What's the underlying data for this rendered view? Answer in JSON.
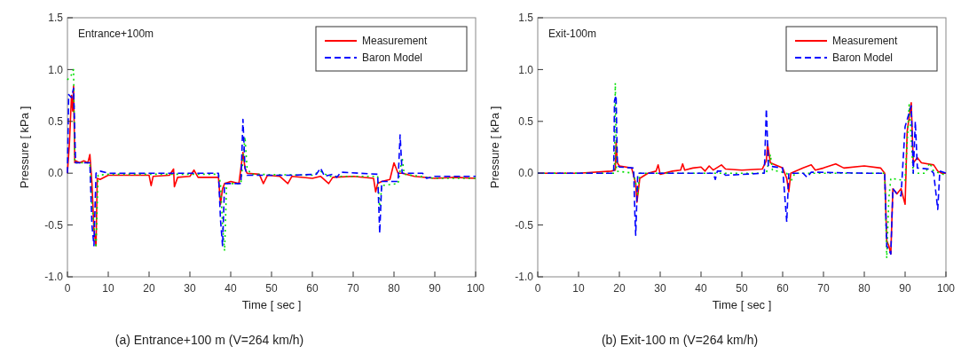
{
  "chart_data": [
    {
      "type": "line",
      "title": "(a)  Entrance+100  m  (V=264  km/h)",
      "xlabel": "Time [ sec ]",
      "ylabel": "Pressure [ kPa ]",
      "annotations": [
        "Entrance+100m"
      ],
      "xlim": [
        0,
        100
      ],
      "ylim": [
        -1,
        1.5
      ],
      "xticks": [
        0,
        10,
        20,
        30,
        40,
        50,
        60,
        70,
        80,
        90,
        100
      ],
      "yticks": [
        {
          "value": -1,
          "label": "-1.0"
        },
        {
          "value": -0.5,
          "label": "-0.5"
        },
        {
          "value": 0,
          "label": "0.0"
        },
        {
          "value": 0.5,
          "label": "0.5"
        },
        {
          "value": 1,
          "label": "1.0"
        },
        {
          "value": 1.5,
          "label": "1.5"
        }
      ],
      "legend": "top right",
      "grid": false,
      "series": [
        {
          "name": "Measurement",
          "color": "#ff0000",
          "line_style": "solid",
          "x": [
            0,
            0.5,
            1,
            1.3,
            1.5,
            1.8,
            2,
            3,
            4,
            5,
            5.5,
            6,
            6.5,
            7,
            7.3,
            8,
            10,
            20,
            20.5,
            21,
            25,
            26,
            26.2,
            27,
            30,
            31,
            32,
            37,
            37.5,
            38,
            38.5,
            40,
            42,
            42.5,
            43,
            43.5,
            44,
            47,
            48,
            49,
            52,
            54,
            55,
            60,
            62,
            64,
            65,
            70,
            75,
            75.5,
            76,
            77,
            79,
            80,
            81,
            82,
            85,
            90,
            95,
            100
          ],
          "values": [
            0,
            0.3,
            0.75,
            0.6,
            0.84,
            0.1,
            0.12,
            0.1,
            0.12,
            0.1,
            0.18,
            -0.1,
            -0.55,
            -0.7,
            -0.05,
            -0.06,
            -0.02,
            -0.02,
            -0.12,
            -0.03,
            -0.02,
            0.04,
            -0.13,
            -0.04,
            -0.03,
            0.03,
            -0.04,
            -0.04,
            -0.3,
            -0.15,
            -0.1,
            -0.08,
            -0.1,
            0.05,
            0.2,
            0.05,
            0,
            -0.01,
            -0.1,
            -0.02,
            -0.03,
            -0.1,
            -0.03,
            -0.05,
            -0.03,
            -0.1,
            -0.04,
            -0.03,
            -0.05,
            -0.18,
            -0.1,
            -0.08,
            -0.06,
            0.1,
            0,
            0,
            -0.03,
            -0.05,
            -0.04,
            -0.05
          ]
        },
        {
          "color": "#00e000",
          "line_style": "dotted",
          "x": [
            0,
            1,
            1.5,
            1.8,
            5.5,
            6,
            7,
            7.5,
            10,
            37,
            37.5,
            38,
            38.5,
            39,
            42.5,
            43.5,
            44,
            45,
            60,
            62,
            64,
            76,
            76.5,
            77,
            81,
            82,
            82.5,
            90,
            100
          ],
          "values": [
            0.9,
            0.95,
            1,
            0.1,
            0.1,
            -0.3,
            -0.72,
            -0.02,
            -0.01,
            -0.01,
            -0.1,
            -0.5,
            -0.75,
            -0.1,
            -0.1,
            0.35,
            0.05,
            -0.01,
            -0.02,
            0.02,
            -0.03,
            -0.03,
            -0.35,
            -0.12,
            -0.1,
            0.15,
            -0.01,
            -0.05,
            -0.05
          ]
        },
        {
          "name": "Baron Model",
          "color": "#0000ff",
          "line_style": "dashed",
          "x": [
            0,
            0.3,
            1,
            1.5,
            2,
            5.5,
            6,
            6.5,
            7,
            8,
            10,
            37,
            37.5,
            38,
            38.5,
            42.5,
            43,
            43.5,
            44,
            55,
            61,
            62,
            63,
            65,
            66,
            67,
            76,
            76.5,
            77,
            81,
            81.5,
            82,
            87,
            88,
            90,
            100
          ],
          "values": [
            0,
            0.76,
            0.73,
            0.82,
            0.1,
            0.1,
            -0.5,
            -0.7,
            0,
            0.02,
            0,
            0,
            -0.45,
            -0.7,
            -0.1,
            -0.1,
            0.52,
            0.05,
            -0.02,
            -0.02,
            -0.01,
            0.05,
            -0.03,
            -0.01,
            -0.04,
            0.01,
            -0.01,
            -0.58,
            -0.08,
            -0.08,
            0.37,
            0,
            0,
            -0.05,
            -0.03,
            -0.03
          ]
        }
      ]
    },
    {
      "type": "line",
      "title": "(b)  Exit-100  m  (V=264  km/h)",
      "xlabel": "Time [ sec ]",
      "ylabel": "Pressure [ kPa ]",
      "annotations": [
        "Exit-100m"
      ],
      "xlim": [
        0,
        100
      ],
      "ylim": [
        -1,
        1.5
      ],
      "xticks": [
        0,
        10,
        20,
        30,
        40,
        50,
        60,
        70,
        80,
        90,
        100
      ],
      "yticks": [
        {
          "value": -1,
          "label": "-1.0"
        },
        {
          "value": -0.5,
          "label": "-0.5"
        },
        {
          "value": 0,
          "label": "0.0"
        },
        {
          "value": 0.5,
          "label": "0.5"
        },
        {
          "value": 1,
          "label": "1.0"
        },
        {
          "value": 1.5,
          "label": "1.5"
        }
      ],
      "legend": "top right",
      "grid": false,
      "series": [
        {
          "name": "Measurement",
          "color": "#ff0000",
          "line_style": "solid",
          "x": [
            0,
            10,
            18,
            19,
            19.2,
            19.5,
            20,
            23,
            24,
            24.3,
            25,
            27,
            29,
            29.5,
            30,
            33,
            35,
            35.5,
            36,
            38,
            40,
            41,
            42,
            43,
            45,
            46,
            50,
            55,
            56,
            56.3,
            57,
            60,
            61,
            61.5,
            62,
            65,
            67,
            68,
            70,
            73,
            75,
            80,
            84,
            85,
            85.5,
            86,
            86.5,
            87,
            88,
            89,
            90,
            90.5,
            91.5,
            92,
            93,
            94,
            97,
            98,
            99,
            100
          ],
          "values": [
            0,
            0,
            0.02,
            0.03,
            0.3,
            0.1,
            0.07,
            0.05,
            -0.1,
            -0.28,
            -0.05,
            0,
            0.02,
            0.08,
            -0.01,
            0.02,
            0.03,
            0.09,
            0.03,
            0.05,
            0.06,
            0.02,
            0.07,
            0.03,
            0.08,
            0.04,
            0.03,
            0.04,
            0.12,
            0.28,
            0.1,
            0.05,
            -0.05,
            -0.18,
            0,
            0.05,
            0.08,
            0.03,
            0.05,
            0.09,
            0.05,
            0.07,
            0.05,
            0,
            -0.65,
            -0.7,
            -0.78,
            -0.15,
            -0.2,
            -0.15,
            -0.3,
            0.4,
            0.68,
            0.1,
            0.15,
            0.1,
            0.08,
            0.02,
            0,
            0
          ]
        },
        {
          "color": "#00e000",
          "line_style": "dotted",
          "x": [
            0,
            18.8,
            19,
            19.3,
            23.5,
            24,
            24.5,
            25,
            56,
            57,
            57.5,
            61,
            62,
            63,
            85,
            85.5,
            86,
            86.5,
            90,
            91,
            92,
            95,
            96,
            97,
            100
          ],
          "values": [
            0,
            0,
            0.87,
            0.02,
            0,
            -0.1,
            -0.2,
            0,
            0,
            0.18,
            0.03,
            0,
            -0.08,
            0,
            0,
            -0.82,
            -0.25,
            -0.05,
            -0.07,
            0.66,
            0,
            0,
            0.1,
            0.02,
            -0.02
          ]
        },
        {
          "name": "Baron Model",
          "color": "#0000ff",
          "line_style": "dashed",
          "x": [
            0,
            18.6,
            18.8,
            19.2,
            19.5,
            20,
            23.5,
            23.8,
            24,
            24.5,
            43,
            43.5,
            44,
            45,
            46,
            55.5,
            56,
            56.5,
            60,
            61,
            61.5,
            65,
            66,
            67,
            80,
            85,
            85.5,
            86.5,
            87,
            88,
            89,
            90,
            91.5,
            92,
            92.5,
            93,
            96,
            97,
            98,
            98.5,
            100
          ],
          "values": [
            0,
            0,
            0.7,
            0.75,
            0.08,
            0.06,
            0.05,
            -0.4,
            -0.6,
            0,
            0,
            -0.06,
            0.02,
            0.02,
            -0.02,
            0,
            0.62,
            0.07,
            0.05,
            -0.47,
            0,
            0,
            -0.04,
            0.01,
            0,
            0,
            -0.7,
            -0.78,
            -0.15,
            -0.2,
            -0.22,
            0.45,
            0.65,
            0,
            0.5,
            0.05,
            0.04,
            0,
            -0.35,
            0.02,
            0
          ]
        }
      ]
    }
  ]
}
